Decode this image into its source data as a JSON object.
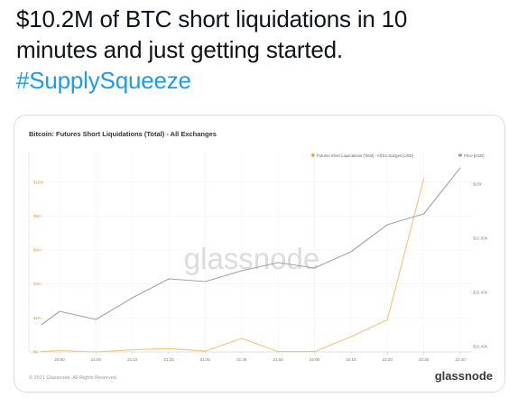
{
  "tweet": {
    "line1": "$10.2M of BTC short liquidations in 10",
    "line2": "minutes and just getting started.",
    "hashtag": "#SupplySqueeze"
  },
  "card": {
    "chart_title": "Bitcoin: Futures Short Liquidations (Total) - All Exchanges",
    "watermark": "glassnode",
    "copyright": "© 2021 Glassnode. All Rights Reserved.",
    "brand": "glassnode"
  },
  "colors": {
    "link": "#1d9bf0",
    "liquidations_line": "#f7c37a",
    "price_line": "#a3a3a3",
    "legend_liq_dot": "#f7931a",
    "legend_price_dot": "#7a7a7a"
  },
  "chart_data": {
    "type": "line",
    "title": "Bitcoin: Futures Short Liquidations (Total) - All Exchanges",
    "x_ticks": [
      "20:50",
      "21:00",
      "21:10",
      "21:20",
      "21:30",
      "21:40",
      "21:50",
      "22:00",
      "22:10",
      "22:20",
      "22:30",
      "22:40"
    ],
    "y_left_ticks": [
      "$0",
      "$2m",
      "$4m",
      "$6m",
      "$8m",
      "$10m"
    ],
    "y_right_ticks": [
      "$32.40k",
      "$32.60k",
      "$32.80k",
      "$33k"
    ],
    "ylim_left": [
      0,
      11.0
    ],
    "ylim_right": [
      32.38,
      33.07
    ],
    "grid": true,
    "legend_position": "top-right",
    "series": [
      {
        "name": "Futures Short Liquidations (Total) - All Exchanges [USD]",
        "axis": "left",
        "x": [
          "20:45",
          "20:50",
          "21:00",
          "21:10",
          "21:20",
          "21:30",
          "21:40",
          "21:50",
          "22:00",
          "22:10",
          "22:20",
          "22:30"
        ],
        "values": [
          0.02,
          0.08,
          0.0,
          0.12,
          0.2,
          0.05,
          0.8,
          0.02,
          0.02,
          0.9,
          1.9,
          10.2
        ]
      },
      {
        "name": "Price [USD]",
        "axis": "right",
        "x": [
          "20:45",
          "20:50",
          "21:00",
          "21:10",
          "21:20",
          "21:30",
          "21:40",
          "21:50",
          "22:00",
          "22:10",
          "22:20",
          "22:30",
          "22:40"
        ],
        "values": [
          32.48,
          32.53,
          32.5,
          32.58,
          32.65,
          32.64,
          32.68,
          32.71,
          32.69,
          32.75,
          32.85,
          32.89,
          33.06
        ]
      }
    ]
  }
}
